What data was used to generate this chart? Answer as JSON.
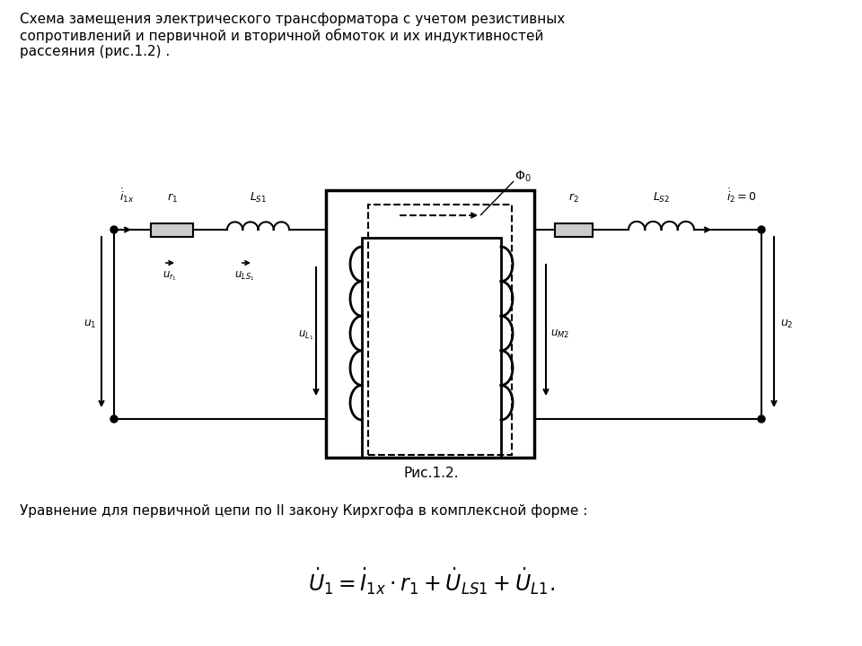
{
  "bg_color": "#ffffff",
  "text_color": "#000000",
  "line_color": "#000000",
  "title_text": "Схема замещения электрического трансформатора с учетом резистивных\nсопротивлений и первичной и вторичной обмоток и их индуктивностей\nрассеяния (рис.1.2) .",
  "fig_caption": "Рис.1.2.",
  "equation_label": "Уравнение для первичной цепи по II закону Кирхгофа в комплексной форме :",
  "figsize": [
    9.6,
    7.2
  ],
  "dpi": 100
}
